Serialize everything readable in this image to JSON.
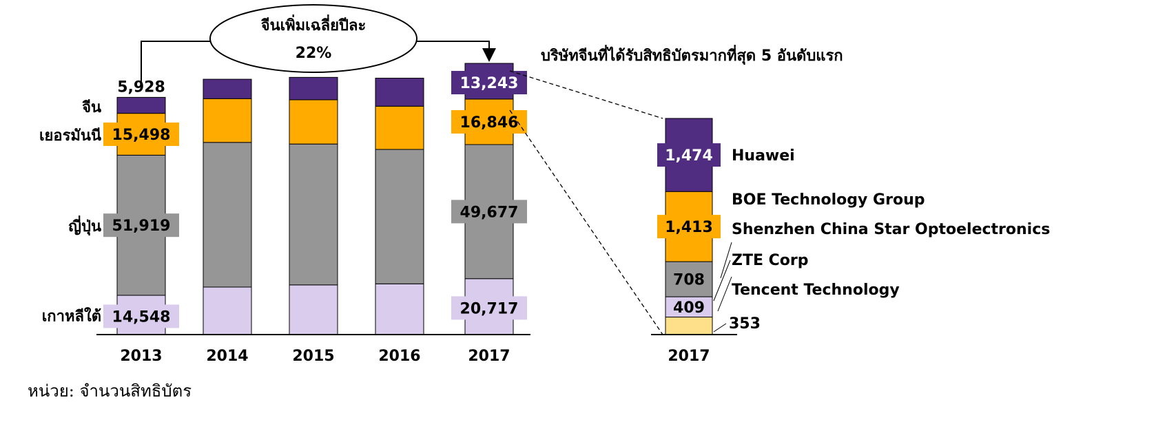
{
  "chart_data": [
    {
      "type": "bar",
      "stacked": true,
      "categories": [
        "2013",
        "2014",
        "2015",
        "2016",
        "2017"
      ],
      "series": [
        {
          "name": "เกาหลีใต้",
          "color": "#d9ccec",
          "values": [
            14548,
            17600,
            18400,
            18800,
            20717
          ]
        },
        {
          "name": "ญี่ปุ่น",
          "color": "#969696",
          "values": [
            51919,
            53600,
            52200,
            49800,
            49677
          ]
        },
        {
          "name": "เยอรมันนี",
          "color": "#ffab00",
          "values": [
            15498,
            16200,
            16400,
            16000,
            16846
          ]
        },
        {
          "name": "จีน",
          "color": "#512d82",
          "values": [
            5928,
            7200,
            8300,
            10400,
            13243
          ]
        }
      ],
      "value_labels": {
        "2013": [
          "14,548",
          "51,919",
          "15,498",
          "5,928"
        ],
        "2017": [
          "20,717",
          "49,677",
          "16,846",
          "13,243"
        ]
      },
      "annotation": {
        "line1": "จีนเพิ่มเฉลี่ยปีละ",
        "line2": "22%"
      },
      "ylim": [
        0,
        100000
      ]
    },
    {
      "type": "bar",
      "stacked": true,
      "title": "บริษัทจีนที่ได้รับสิทธิบัตรมากที่สุด 5 อันดับแรก",
      "categories": [
        "2017"
      ],
      "series": [
        {
          "name": "Tencent Technology",
          "color": "#ffe08a",
          "value": 353,
          "label": "353"
        },
        {
          "name": "ZTE Corp",
          "color": "#d9ccec",
          "value": 409,
          "label": "409"
        },
        {
          "name": "Shenzhen China Star Optoelectronics",
          "color": "#969696",
          "value": 708,
          "label": "708"
        },
        {
          "name": "BOE Technology Group",
          "color": "#ffab00",
          "value": 1413,
          "label": "1,413"
        },
        {
          "name": "Huawei",
          "color": "#512d82",
          "value": 1474,
          "label": "1,474"
        }
      ]
    }
  ],
  "footnote": "หน่วย: จำนวนสิทธิบัตร"
}
